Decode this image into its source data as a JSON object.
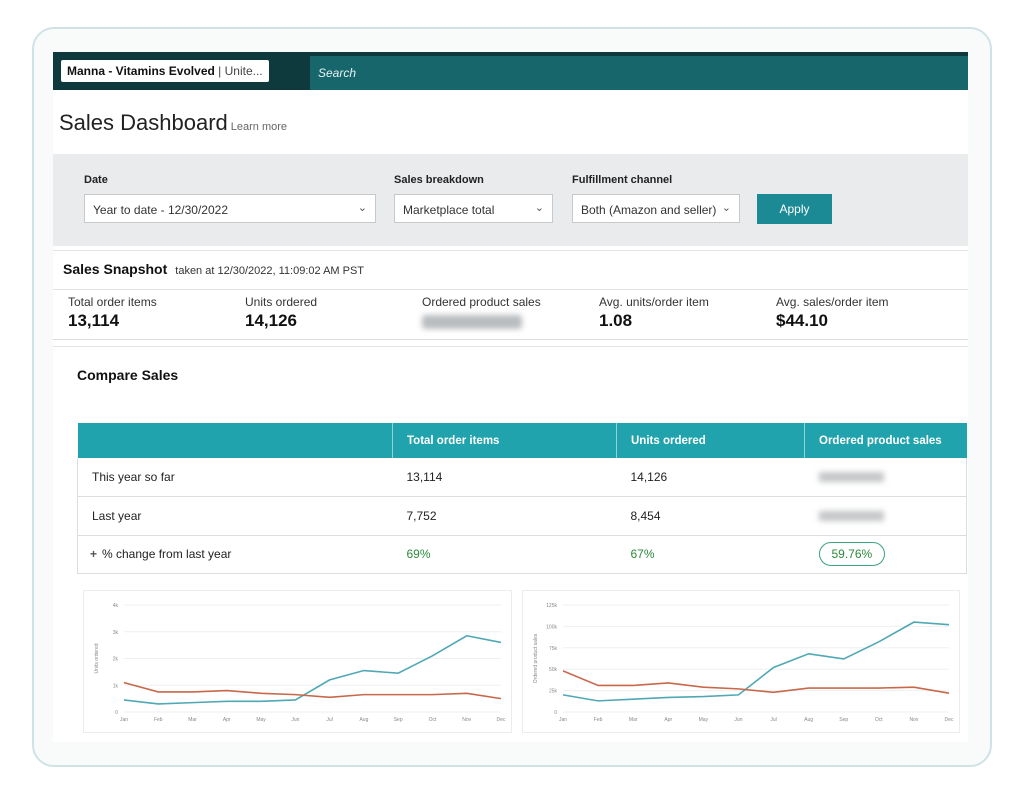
{
  "topbar": {
    "account_name": "Manna - Vitamins Evolved",
    "account_suffix": "| Unite...",
    "search_placeholder": "Search"
  },
  "header": {
    "title": "Sales Dashboard",
    "learn_more": "Learn more"
  },
  "filters": {
    "date_label": "Date",
    "date_value": "Year to date - 12/30/2022",
    "breakdown_label": "Sales breakdown",
    "breakdown_value": "Marketplace total",
    "channel_label": "Fulfillment channel",
    "channel_value": "Both (Amazon and seller)",
    "apply": "Apply"
  },
  "snapshot": {
    "title": "Sales Snapshot",
    "taken_at": "taken at 12/30/2022, 11:09:02 AM PST",
    "metrics": [
      {
        "label": "Total order items",
        "value": "13,114"
      },
      {
        "label": "Units ordered",
        "value": "14,126"
      },
      {
        "label": "Ordered product sales",
        "value": ""
      },
      {
        "label": "Avg. units/order item",
        "value": "1.08"
      },
      {
        "label": "Avg. sales/order item",
        "value": "$44.10"
      }
    ]
  },
  "compare": {
    "title": "Compare Sales",
    "headers": [
      "",
      "Total order items",
      "Units ordered",
      "Ordered product sales"
    ],
    "rows": [
      {
        "label": "This year so far",
        "total": "13,114",
        "units": "14,126"
      },
      {
        "label": "Last year",
        "total": "7,752",
        "units": "8,454"
      },
      {
        "label": "% change from last year",
        "total": "69%",
        "units": "67%",
        "sales": "59.76%"
      }
    ]
  },
  "colors": {
    "this_year": "#4fa8b5",
    "last_year": "#c7684a",
    "accent": "#1c8a94"
  },
  "chart_data": [
    {
      "type": "line",
      "ylabel": "Units ordered",
      "categories": [
        "Jan",
        "Feb",
        "Mar",
        "Apr",
        "May",
        "Jun",
        "Jul",
        "Aug",
        "Sep",
        "Oct",
        "Nov",
        "Dec"
      ],
      "yticks": [
        "0",
        "1k",
        "2k",
        "3k",
        "4k"
      ],
      "ylim": [
        0,
        4000
      ],
      "series": [
        {
          "name": "This year",
          "values": [
            450,
            300,
            350,
            400,
            400,
            450,
            1200,
            1550,
            1450,
            2100,
            2850,
            2600
          ]
        },
        {
          "name": "Last year",
          "values": [
            1100,
            750,
            750,
            800,
            700,
            650,
            550,
            650,
            650,
            650,
            700,
            500
          ]
        }
      ]
    },
    {
      "type": "line",
      "ylabel": "Ordered product sales",
      "categories": [
        "Jan",
        "Feb",
        "Mar",
        "Apr",
        "May",
        "Jun",
        "Jul",
        "Aug",
        "Sep",
        "Oct",
        "Nov",
        "Dec"
      ],
      "yticks": [
        "0",
        "25k",
        "50k",
        "75k",
        "100k",
        "125k"
      ],
      "ylim": [
        0,
        125000
      ],
      "series": [
        {
          "name": "This year",
          "values": [
            20000,
            13000,
            15000,
            17000,
            18000,
            20000,
            52000,
            68000,
            62000,
            82000,
            105000,
            102000
          ]
        },
        {
          "name": "Last year",
          "values": [
            48000,
            31000,
            31000,
            34000,
            29000,
            27000,
            23000,
            28000,
            28000,
            28000,
            29000,
            22000
          ]
        }
      ]
    }
  ]
}
